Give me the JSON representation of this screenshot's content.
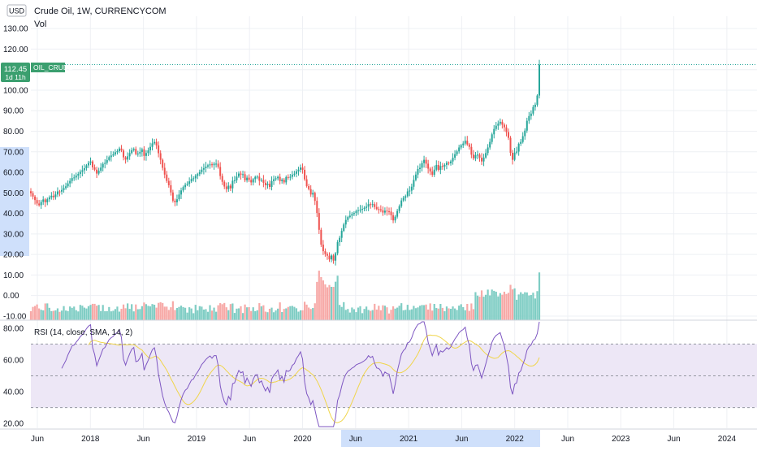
{
  "header": {
    "currency_badge": "USD",
    "title": "Crude Oil, 1W, CURRENCYCOM",
    "volume_label": "Vol",
    "price_tag": "112.45",
    "countdown": "1d 11h",
    "symbol_tag": "OIL_CRUDE"
  },
  "rsi_legend": "RSI (14, close, SMA, 14, 2)",
  "colors": {
    "up": "#26a69a",
    "down": "#ef5350",
    "up_volume": "#7fcdc4",
    "down_volume": "#f7a9a7",
    "rsi_line": "#7e57c2",
    "rsi_ma": "#f0d54a",
    "rsi_band": "#ede7f6",
    "axis_highlight": "#cfe0fb",
    "price_tag_bg": "#3b9f6f"
  },
  "chart_data": [
    {
      "type": "candlestick",
      "name": "price",
      "x_axis_ticks": [
        "Jun",
        "2018",
        "Jun",
        "2019",
        "Jun",
        "2020",
        "Jun",
        "2021",
        "Jun",
        "2022",
        "Jun",
        "2023",
        "Jun",
        "2024"
      ],
      "y_ticks": [
        "130.00",
        "120.00",
        "110.00",
        "100.00",
        "90.00",
        "80.00",
        "70.00",
        "60.00",
        "50.00",
        "40.00",
        "30.00",
        "20.00",
        "10.00",
        "0.00",
        "-10.00"
      ],
      "y_range": [
        -12,
        136
      ],
      "last_price": 112.45,
      "weekly_closes": [
        49.8,
        48.2,
        46.5,
        44.8,
        44.0,
        45.6,
        46.8,
        45.4,
        46.9,
        47.8,
        48.6,
        47.9,
        49.2,
        50.7,
        50.6,
        51.4,
        52.3,
        53.2,
        54.6,
        55.8,
        57.2,
        57.5,
        58.4,
        59.2,
        60.3,
        61.0,
        62.0,
        63.4,
        64.6,
        65.3,
        62.4,
        61.3,
        59.4,
        60.8,
        62.3,
        64.1,
        64.6,
        66.0,
        67.4,
        68.2,
        68.7,
        69.8,
        70.3,
        71.6,
        70.6,
        67.3,
        66.2,
        67.8,
        69.4,
        70.8,
        71.4,
        68.9,
        69.1,
        69.9,
        71.2,
        68.0,
        69.4,
        70.7,
        72.4,
        74.1,
        74.8,
        73.1,
        69.3,
        66.1,
        62.2,
        58.9,
        55.8,
        53.7,
        50.2,
        46.2,
        45.4,
        46.9,
        49.2,
        51.2,
        52.8,
        53.9,
        54.4,
        55.6,
        56.8,
        57.1,
        58.3,
        59.1,
        60.1,
        61.3,
        62.0,
        62.8,
        63.4,
        63.9,
        63.5,
        64.2,
        64.2,
        62.6,
        58.2,
        55.4,
        53.1,
        51.8,
        53.5,
        52.2,
        55.9,
        56.1,
        57.9,
        59.4,
        58.8,
        59.1,
        56.1,
        57.4,
        56.3,
        55.1,
        56.7,
        57.8,
        57.9,
        55.9,
        56.3,
        54.9,
        53.7,
        54.4,
        52.9,
        55.7,
        56.6,
        57.1,
        57.8,
        55.7,
        56.4,
        55.1,
        57.7,
        57.5,
        57.8,
        58.9,
        59.3,
        60.5,
        61.3,
        62.3,
        61.2,
        56.6,
        53.3,
        51.8,
        49.2,
        50.0,
        46.1,
        40.2,
        32.0,
        24.8,
        21.6,
        20.2,
        19.4,
        17.6,
        19.5,
        17.0,
        20.6,
        26.0,
        28.1,
        31.5,
        34.6,
        36.8,
        38.2,
        38.9,
        39.7,
        40.2,
        41.1,
        41.5,
        41.8,
        42.2,
        42.7,
        43.3,
        44.5,
        44.1,
        44.5,
        43.1,
        42.1,
        42.0,
        41.5,
        40.4,
        41.3,
        41.0,
        40.9,
        39.1,
        36.6,
        38.4,
        41.2,
        43.5,
        46.3,
        47.6,
        48.4,
        50.7,
        51.1,
        53.0,
        56.3,
        58.9,
        61.6,
        62.2,
        64.5,
        66.1,
        64.2,
        61.8,
        60.4,
        58.8,
        61.3,
        63.6,
        61.2,
        63.1,
        62.8,
        63.6,
        64.7,
        64.4,
        65.3,
        67.1,
        68.8,
        70.2,
        72.1,
        73.2,
        74.0,
        75.4,
        73.6,
        72.4,
        68.6,
        66.8,
        68.4,
        68.6,
        67.1,
        65.3,
        67.2,
        69.4,
        72.1,
        74.8,
        78.5,
        81.1,
        82.7,
        83.7,
        84.6,
        83.2,
        81.9,
        79.6,
        76.8,
        69.5,
        66.1,
        69.6,
        70.1,
        73.9,
        74.8,
        77.6,
        80.3,
        85.1,
        87.4,
        88.6,
        91.8,
        92.9,
        97.4,
        112.45
      ],
      "volume_y_range": [
        -12,
        136
      ]
    },
    {
      "type": "line",
      "name": "RSI (14, close, SMA, 14, 2)",
      "y_ticks": [
        "80.00",
        "60.00",
        "40.00",
        "20.00"
      ],
      "band": [
        30,
        70
      ],
      "midline": 50,
      "y_range": [
        17,
        84
      ]
    }
  ]
}
